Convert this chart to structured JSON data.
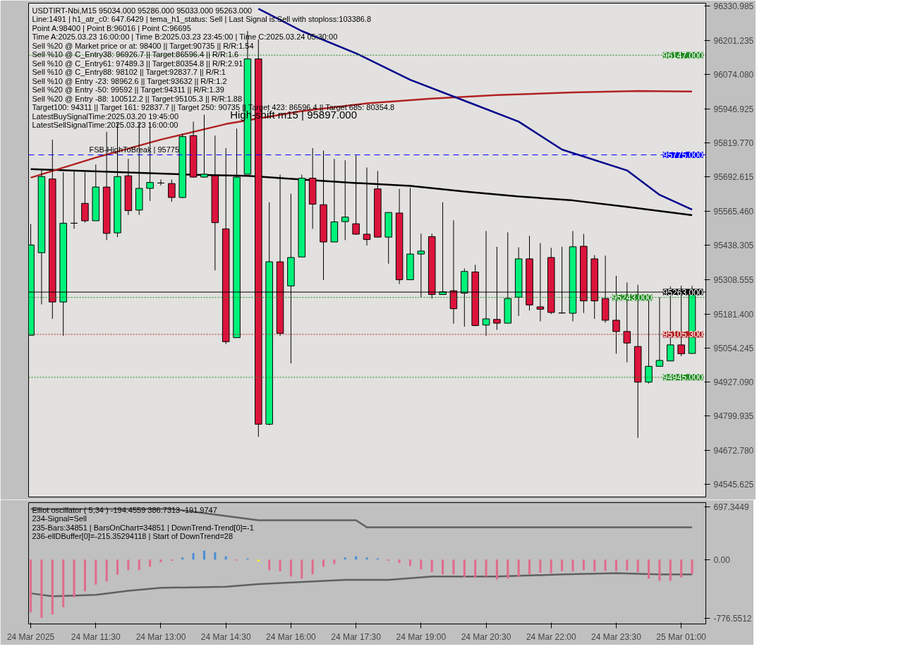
{
  "chart_data": [
    {
      "type": "candlestick",
      "title": "USDTIRT-Nbi,M15  95034.000 95286.000 95033.000 95263.000",
      "x": [
        "2025-03-24T10:00",
        "2025-03-24T10:15",
        "2025-03-24T10:30",
        "2025-03-24T10:45",
        "2025-03-24T11:00",
        "2025-03-24T11:15",
        "2025-03-24T11:30",
        "2025-03-24T11:45",
        "2025-03-24T12:00",
        "2025-03-24T12:15",
        "2025-03-24T12:30",
        "2025-03-24T12:45",
        "2025-03-24T13:00",
        "2025-03-24T13:15",
        "2025-03-24T13:30",
        "2025-03-24T13:45",
        "2025-03-24T14:00",
        "2025-03-24T14:15",
        "2025-03-24T14:30",
        "2025-03-24T14:45",
        "2025-03-24T15:00",
        "2025-03-24T15:15",
        "2025-03-24T15:30",
        "2025-03-24T15:45",
        "2025-03-24T16:00",
        "2025-03-24T16:15",
        "2025-03-24T16:30",
        "2025-03-24T16:45",
        "2025-03-24T17:00",
        "2025-03-24T17:15",
        "2025-03-24T17:30",
        "2025-03-24T17:45",
        "2025-03-24T18:00",
        "2025-03-24T18:15",
        "2025-03-24T18:30",
        "2025-03-24T18:45",
        "2025-03-24T19:00",
        "2025-03-24T19:15",
        "2025-03-24T19:30",
        "2025-03-24T19:45",
        "2025-03-24T20:00",
        "2025-03-24T20:15",
        "2025-03-24T20:30",
        "2025-03-24T20:45",
        "2025-03-24T21:00",
        "2025-03-24T21:15",
        "2025-03-24T21:30",
        "2025-03-24T21:45",
        "2025-03-24T22:00",
        "2025-03-24T22:15",
        "2025-03-24T22:30",
        "2025-03-24T22:45",
        "2025-03-24T23:00",
        "2025-03-24T23:15",
        "2025-03-24T23:30",
        "2025-03-24T23:45",
        "2025-03-25T00:00",
        "2025-03-25T00:15",
        "2025-03-25T00:30",
        "2025-03-25T00:45",
        "2025-03-25T01:00",
        "2025-03-25T01:15"
      ],
      "ohlc": [
        [
          95102,
          95517,
          95102,
          95439
        ],
        [
          95410,
          95719,
          95217,
          95694
        ],
        [
          95685,
          95832,
          95163,
          95226
        ],
        [
          95226,
          95710,
          95100,
          95520
        ],
        [
          95520,
          95719,
          95499,
          95520
        ],
        [
          95594,
          95710,
          95522,
          95529
        ],
        [
          95529,
          95739,
          95529,
          95655
        ],
        [
          95655,
          95861,
          95457,
          95482
        ],
        [
          95484,
          95894,
          95468,
          95694
        ],
        [
          95697,
          95760,
          95551,
          95567
        ],
        [
          95569,
          95894,
          95551,
          95650
        ],
        [
          95650,
          95894,
          95603,
          95672
        ],
        [
          95670,
          95683,
          95661,
          95670
        ],
        [
          95668,
          95683,
          95600,
          95616
        ],
        [
          95616,
          95854,
          95613,
          95843
        ],
        [
          95847,
          95899,
          95690,
          95692
        ],
        [
          95692,
          95925,
          95690,
          95703
        ],
        [
          95697,
          95847,
          95344,
          95522
        ],
        [
          95499,
          95800,
          95069,
          95078
        ],
        [
          95093,
          95873,
          95093,
          95692
        ],
        [
          95703,
          96237,
          95703,
          96133
        ],
        [
          96133,
          96206,
          94723,
          94770
        ],
        [
          94770,
          95598,
          94766,
          95376
        ],
        [
          95376,
          95701,
          95100,
          95109
        ],
        [
          95286,
          95630,
          94997,
          95392
        ],
        [
          95394,
          95701,
          95394,
          95688
        ],
        [
          95688,
          95800,
          95499,
          95591
        ],
        [
          95589,
          95791,
          95308,
          95450
        ],
        [
          95450,
          95760,
          95450,
          95525
        ],
        [
          95526,
          95755,
          95457,
          95543
        ],
        [
          95518,
          95773,
          95477,
          95479
        ],
        [
          95479,
          95728,
          95437,
          95459
        ],
        [
          95648,
          95715,
          95468,
          95468
        ],
        [
          95468,
          95560,
          95369,
          95560
        ],
        [
          95558,
          95648,
          95293,
          95309
        ],
        [
          95309,
          95652,
          95309,
          95405
        ],
        [
          95405,
          95481,
          95244,
          95416
        ],
        [
          95470,
          95481,
          95239,
          95254
        ],
        [
          95254,
          95598,
          95254,
          95264
        ],
        [
          95268,
          95531,
          95145,
          95201
        ],
        [
          95259,
          95351,
          95134,
          95340
        ],
        [
          95338,
          95365,
          95136,
          95138
        ],
        [
          95140,
          95491,
          95100,
          95163
        ],
        [
          95161,
          95432,
          95122,
          95147
        ],
        [
          95147,
          95486,
          95147,
          95239
        ],
        [
          95244,
          95430,
          95174,
          95387
        ],
        [
          95387,
          95473,
          95194,
          95215
        ],
        [
          95208,
          95446,
          95154,
          95199
        ],
        [
          95392,
          95428,
          95181,
          95187
        ],
        [
          95185,
          95432,
          95185,
          95185
        ],
        [
          95184,
          95491,
          95154,
          95432
        ],
        [
          95434,
          95480,
          95185,
          95230
        ],
        [
          95387,
          95401,
          95163,
          95230
        ],
        [
          95239,
          95399,
          95149,
          95158
        ],
        [
          95158,
          95324,
          95033,
          95116
        ],
        [
          95116,
          95299,
          95001,
          95073
        ],
        [
          95060,
          95290,
          94719,
          94927
        ],
        [
          94927,
          95235,
          94922,
          94986
        ],
        [
          94986,
          95244,
          94986,
          95008
        ],
        [
          95006,
          95284,
          95006,
          95066
        ],
        [
          95066,
          95287,
          95024,
          95033
        ],
        [
          95034,
          95286,
          95033,
          95263
        ]
      ],
      "series": [
        {
          "type": "line",
          "color": "#000000",
          "x": [
            "2025-03-24T10:00",
            "2025-03-24T13:45",
            "2025-03-24T15:00",
            "2025-03-24T16:15",
            "2025-03-24T17:30",
            "2025-03-24T18:45",
            "2025-03-24T20:00",
            "2025-03-24T21:15",
            "2025-03-24T22:30",
            "2025-03-24T23:45",
            "2025-03-25T01:15"
          ],
          "values": [
            95722,
            95701,
            95697,
            95683,
            95670,
            95659,
            95638,
            95620,
            95605,
            95581,
            95550
          ]
        },
        {
          "type": "line",
          "color": "#b22222",
          "x": [
            "2025-03-24T10:00",
            "2025-03-24T11:30",
            "2025-03-24T13:00",
            "2025-03-24T14:30",
            "2025-03-24T16:15",
            "2025-03-24T17:45",
            "2025-03-24T19:15",
            "2025-03-24T20:45",
            "2025-03-24T22:30",
            "2025-03-25T00:00",
            "2025-03-25T01:15"
          ],
          "values": [
            95690,
            95765,
            95832,
            95890,
            95938,
            95967,
            95985,
            95998,
            96008,
            96013,
            96011
          ]
        },
        {
          "type": "line",
          "color": "#00008b",
          "x": [
            "2025-03-24T15:15",
            "2025-03-24T16:15",
            "2025-03-24T17:30",
            "2025-03-24T18:45",
            "2025-03-24T20:00",
            "2025-03-24T21:15",
            "2025-03-24T22:15",
            "2025-03-24T23:45",
            "2025-03-25T00:30",
            "2025-03-25T01:15"
          ],
          "values": [
            96320,
            96237,
            96154,
            96055,
            95977,
            95899,
            95795,
            95717,
            95626,
            95571
          ]
        }
      ],
      "xlim": [
        "2025-03-24T09:57",
        "2025-03-25T01:34"
      ],
      "ylim": [
        94498.5,
        96341
      ],
      "yticks": [
        {
          "value": 96330.985,
          "label": "96330.985"
        },
        {
          "value": 96201.235,
          "label": "96201.235"
        },
        {
          "value": 96074.08,
          "label": "96074.080"
        },
        {
          "value": 95946.925,
          "label": "95946.925"
        },
        {
          "value": 95819.77,
          "label": "95819.770"
        },
        {
          "value": 95692.615,
          "label": "95692.615"
        },
        {
          "value": 95565.46,
          "label": "95565.460"
        },
        {
          "value": 95438.305,
          "label": "95438.305"
        },
        {
          "value": 95308.555,
          "label": "95308.555"
        },
        {
          "value": 95181.4,
          "label": "95181.400"
        },
        {
          "value": 95054.245,
          "label": "95054.245"
        },
        {
          "value": 94927.09,
          "label": "94927.090"
        },
        {
          "value": 94799.935,
          "label": "94799.935"
        },
        {
          "value": 94672.78,
          "label": "94672.780"
        },
        {
          "value": 94545.625,
          "label": "94545.625"
        }
      ],
      "tick_labels": "y",
      "grid": false,
      "ref_lines": [
        {
          "axis": "y",
          "value": 96147,
          "label": "96147.000",
          "color": "#228b22",
          "line_style": "dotted"
        },
        {
          "axis": "y",
          "value": 95775,
          "label": "95775.000",
          "color": "#0000ff",
          "line_style": "dashed"
        },
        {
          "axis": "y",
          "value": 95263,
          "label": "95263.000",
          "color": "#000000",
          "line_style": "solid"
        },
        {
          "axis": "y",
          "value": 95243,
          "label": "95243.000",
          "color": "#228b22",
          "line_style": "dotted"
        },
        {
          "axis": "y",
          "value": 95105.3,
          "label": "95105.300",
          "color": "#b22222",
          "line_style": "dotted"
        },
        {
          "axis": "y",
          "value": 94945,
          "label": "94945.000",
          "color": "#228b22",
          "line_style": "dotted"
        }
      ],
      "annotations": [
        "Line:1491 | h1_atr_c0: 647.6429 | tema_h1_status: Sell | Last Signal is:Sell with stoploss:103386.8",
        "Point A:98400 | Point B:96016 | Point C:96695",
        "Time A:2025.03.23 16:00:00 | Time B:2025.03.23 23:45:00 | Time C:2025.03.24 05:30:00",
        "Sell %20 @ Market price or at: 98400 || Target:90735 || R/R:1.54",
        "Sell %10 @ C_Entry38: 96926.7 || Target:86596.4 || R/R:1.6",
        "Sell %10 @ C_Entry61: 97489.3 || Target:80354.8 || R/R:2.91",
        "Sell %10 @ C_Entry88: 98102 || Target:92837.7 || R/R:1",
        "Sell %10 @ Entry -23: 98962.6 || Target:93632 || R/R:1.2",
        "Sell %20 @ Entry -50: 99592 || Target:94311 || R/R:1.39",
        "Sell %20 @ Entry -88: 100512.2 || Target:95105.3 || R/R:1.88",
        "Target100: 94311 || Target 161: 92837.7 || Target 250: 90735 || Target 423: 86596.4 || Target 685: 80354.8",
        "LatestBuySignalTime:2025.03.20 19:45:00",
        "LatestSellSignalTime:2025.03.23 16:00:00",
        {
          "text": "FSB-HighToBreak | 95775",
          "x": "2025-03-24T11:15",
          "y": 95775
        },
        {
          "text": "High-shift m15 | 95897.000",
          "x": "2025-03-24T14:30",
          "y": 95897
        }
      ]
    },
    {
      "type": "bar",
      "title": "Elliot oscillator ( 5,34 ) -194.4559 386.7313 -191.9747",
      "x": [
        "2025-03-24T10:00",
        "2025-03-24T10:15",
        "2025-03-24T10:30",
        "2025-03-24T10:45",
        "2025-03-24T11:00",
        "2025-03-24T11:15",
        "2025-03-24T11:30",
        "2025-03-24T11:45",
        "2025-03-24T12:00",
        "2025-03-24T12:15",
        "2025-03-24T12:30",
        "2025-03-24T12:45",
        "2025-03-24T13:00",
        "2025-03-24T13:15",
        "2025-03-24T13:30",
        "2025-03-24T13:45",
        "2025-03-24T14:00",
        "2025-03-24T14:15",
        "2025-03-24T14:30",
        "2025-03-24T14:45",
        "2025-03-24T15:00",
        "2025-03-24T15:15",
        "2025-03-24T15:30",
        "2025-03-24T15:45",
        "2025-03-24T16:00",
        "2025-03-24T16:15",
        "2025-03-24T16:30",
        "2025-03-24T16:45",
        "2025-03-24T17:00",
        "2025-03-24T17:15",
        "2025-03-24T17:30",
        "2025-03-24T17:45",
        "2025-03-24T18:00",
        "2025-03-24T18:15",
        "2025-03-24T18:30",
        "2025-03-24T18:45",
        "2025-03-24T19:00",
        "2025-03-24T19:15",
        "2025-03-24T19:30",
        "2025-03-24T19:45",
        "2025-03-24T20:00",
        "2025-03-24T20:15",
        "2025-03-24T20:30",
        "2025-03-24T20:45",
        "2025-03-24T21:00",
        "2025-03-24T21:15",
        "2025-03-24T21:30",
        "2025-03-24T21:45",
        "2025-03-24T22:00",
        "2025-03-24T22:15",
        "2025-03-24T22:30",
        "2025-03-24T22:45",
        "2025-03-24T23:00",
        "2025-03-24T23:15",
        "2025-03-24T23:30",
        "2025-03-24T23:45",
        "2025-03-25T00:00",
        "2025-03-25T00:15",
        "2025-03-25T00:30",
        "2025-03-25T00:45",
        "2025-03-25T01:00",
        "2025-03-25T01:15"
      ],
      "values": [
        -700,
        -776,
        -730,
        -634,
        -502,
        -422,
        -334,
        -290,
        -202,
        -141,
        -141,
        -97,
        -35,
        -17,
        28,
        88,
        119,
        97,
        45,
        -11,
        17,
        -25,
        -141,
        -158,
        -225,
        -253,
        -197,
        -97,
        -56,
        28,
        45,
        28,
        17,
        -17,
        -45,
        -84,
        -129,
        -169,
        -197,
        -197,
        -231,
        -236,
        -225,
        -264,
        -253,
        -225,
        -197,
        -174,
        -180,
        -152,
        -158,
        -141,
        -158,
        -152,
        -152,
        -146,
        -169,
        -253,
        -281,
        -281,
        -236,
        -192
      ],
      "colors": [
        "#e06c8c",
        "#e06c8c",
        "#e06c8c",
        "#e06c8c",
        "#e06c8c",
        "#e06c8c",
        "#e06c8c",
        "#e06c8c",
        "#e06c8c",
        "#e06c8c",
        "#e06c8c",
        "#e06c8c",
        "#e06c8c",
        "#e06c8c",
        "#4a8fd6",
        "#4a8fd6",
        "#4a8fd6",
        "#4a8fd6",
        "#4a8fd6",
        "#e06c8c",
        "#4a8fd6",
        "#ffff00",
        "#e06c8c",
        "#e06c8c",
        "#e06c8c",
        "#e06c8c",
        "#e06c8c",
        "#e06c8c",
        "#e06c8c",
        "#4a8fd6",
        "#4a8fd6",
        "#4a8fd6",
        "#4a8fd6",
        "#e06c8c",
        "#e06c8c",
        "#e06c8c",
        "#e06c8c",
        "#e06c8c",
        "#e06c8c",
        "#e06c8c",
        "#e06c8c",
        "#e06c8c",
        "#e06c8c",
        "#e06c8c",
        "#e06c8c",
        "#e06c8c",
        "#e06c8c",
        "#e06c8c",
        "#e06c8c",
        "#e06c8c",
        "#e06c8c",
        "#e06c8c",
        "#e06c8c",
        "#e06c8c",
        "#e06c8c",
        "#e06c8c",
        "#e06c8c",
        "#e06c8c",
        "#e06c8c",
        "#e06c8c",
        "#e06c8c",
        "#e06c8c"
      ],
      "series": [
        {
          "type": "line",
          "color": "#606060",
          "x": [
            "2025-03-24T10:00",
            "2025-03-24T13:15",
            "2025-03-24T15:15",
            "2025-03-24T17:30",
            "2025-03-24T17:45",
            "2025-03-25T01:15"
          ],
          "values": [
            674,
            674,
            523,
            523,
            430,
            430
          ]
        },
        {
          "type": "line",
          "color": "#606060",
          "x": [
            "2025-03-24T10:00",
            "2025-03-24T10:30",
            "2025-03-24T11:30",
            "2025-03-24T12:15",
            "2025-03-24T13:00",
            "2025-03-24T14:30",
            "2025-03-24T15:15",
            "2025-03-24T16:15",
            "2025-03-24T17:15",
            "2025-03-24T18:15",
            "2025-03-24T19:15",
            "2025-03-24T20:45",
            "2025-03-24T22:15",
            "2025-03-24T23:30",
            "2025-03-25T00:30",
            "2025-03-25T01:15"
          ],
          "values": [
            -449,
            -487,
            -470,
            -416,
            -376,
            -361,
            -325,
            -297,
            -269,
            -269,
            -225,
            -225,
            -197,
            -180,
            -197,
            -197
          ]
        }
      ],
      "xlim": [
        "2025-03-24T09:57",
        "2025-03-25T01:34"
      ],
      "xticks": [
        {
          "value": "2025-03-24T10:00",
          "label": "24 Mar 2025"
        },
        {
          "value": "2025-03-24T11:30",
          "label": "24 Mar 11:30"
        },
        {
          "value": "2025-03-24T13:00",
          "label": "24 Mar 13:00"
        },
        {
          "value": "2025-03-24T14:30",
          "label": "24 Mar 14:30"
        },
        {
          "value": "2025-03-24T16:00",
          "label": "24 Mar 16:00"
        },
        {
          "value": "2025-03-24T17:30",
          "label": "24 Mar 17:30"
        },
        {
          "value": "2025-03-24T19:00",
          "label": "24 Mar 19:00"
        },
        {
          "value": "2025-03-24T20:30",
          "label": "24 Mar 20:30"
        },
        {
          "value": "2025-03-24T22:00",
          "label": "24 Mar 22:00"
        },
        {
          "value": "2025-03-24T23:30",
          "label": "24 Mar 23:30"
        },
        {
          "value": "2025-03-25T01:00",
          "label": "25 Mar 01:00"
        }
      ],
      "ylim": [
        -856,
        758
      ],
      "yticks": [
        697.3449,
        {
          "value": 0,
          "label": "0.00"
        },
        -776.5512
      ],
      "grid": false,
      "annotations": [
        "234-Signal=Sell",
        "235-Bars:34851 | BarsOnChart=34851 | DownTrend-Trend[0]=-1",
        "236-ellDBuffer[0]=-215.35294118 | Start of DownTrend=28"
      ]
    }
  ]
}
